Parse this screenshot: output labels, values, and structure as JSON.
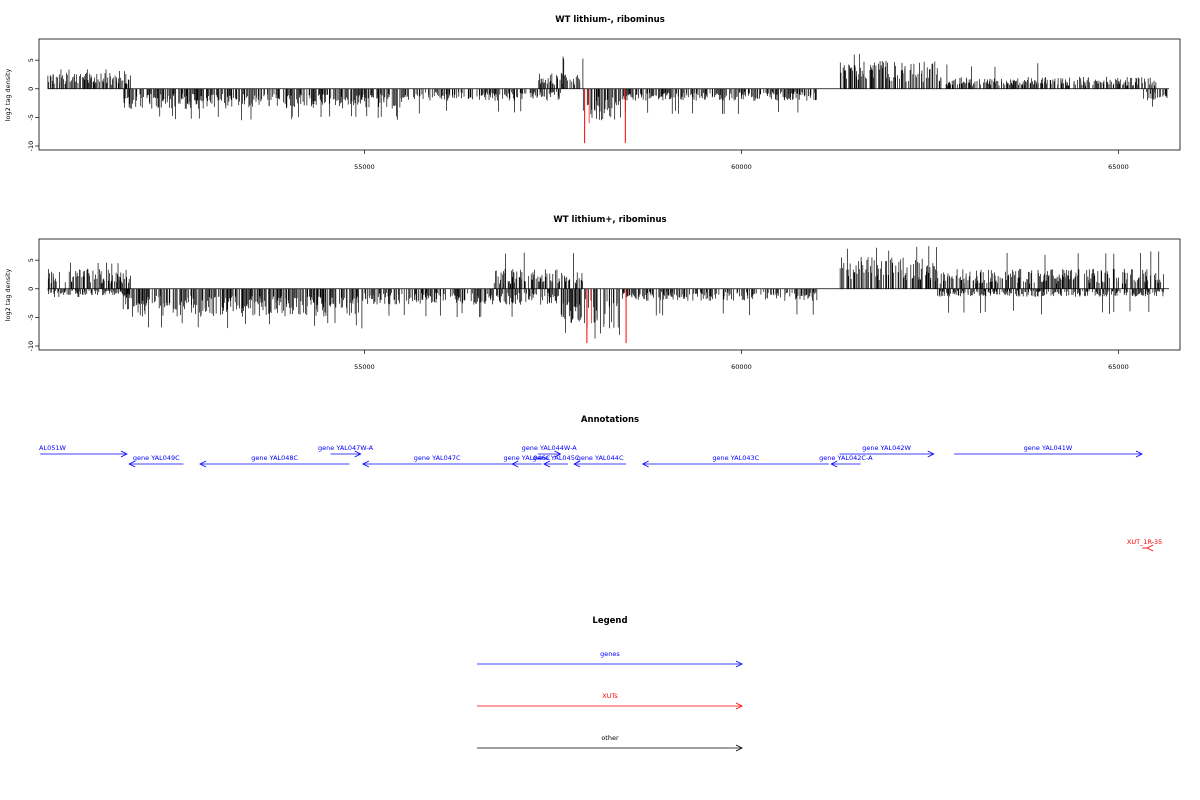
{
  "chart_data": [
    {
      "type": "bar",
      "title": "WT lithium-, ribominus",
      "xlabel": "",
      "ylabel": "log2 tag density",
      "xlim": [
        50700,
        65800
      ],
      "ylim": [
        -10,
        8
      ],
      "x_ticks": [
        55000,
        60000,
        65000
      ],
      "y_ticks": [
        -10,
        -5,
        0,
        5
      ],
      "grid": false,
      "signal_regions": [
        {
          "start": 50800,
          "end": 51900,
          "sign": "+",
          "typical": 2.0,
          "max": 3.6
        },
        {
          "start": 51800,
          "end": 55500,
          "sign": "-",
          "typical": -2.5,
          "max": -5.5
        },
        {
          "start": 55500,
          "end": 57600,
          "sign": "-",
          "typical": -1.5,
          "max": -4.5
        },
        {
          "start": 57300,
          "end": 57900,
          "sign": "+",
          "typical": 2.0,
          "max": 6.2
        },
        {
          "start": 57900,
          "end": 58400,
          "sign": "-",
          "typical": -4.0,
          "max": -7.5
        },
        {
          "start": 58400,
          "end": 61000,
          "sign": "-",
          "typical": -1.5,
          "max": -4.5
        },
        {
          "start": 61300,
          "end": 62600,
          "sign": "+",
          "typical": 3.5,
          "max": 7.0
        },
        {
          "start": 62600,
          "end": 65500,
          "sign": "+",
          "typical": 1.5,
          "max": 4.5
        },
        {
          "start": 65300,
          "end": 65650,
          "sign": "-",
          "typical": -1.5,
          "max": -3.5
        }
      ],
      "highlight": {
        "color": "#ff0000",
        "x": [
          57920,
          58460
        ],
        "value": -9.5
      }
    },
    {
      "type": "bar",
      "title": "WT lithium+, ribominus",
      "xlabel": "",
      "ylabel": "log2 tag density",
      "xlim": [
        50700,
        65800
      ],
      "ylim": [
        -10,
        8
      ],
      "x_ticks": [
        55000,
        60000,
        65000
      ],
      "y_ticks": [
        -10,
        -5,
        0,
        5
      ],
      "grid": false,
      "signal_regions": [
        {
          "start": 50800,
          "end": 51900,
          "sign": "+",
          "typical": 2.5,
          "max": 4.6
        },
        {
          "start": 50800,
          "end": 51900,
          "sign": "-",
          "typical": -0.8,
          "max": -1.5
        },
        {
          "start": 51800,
          "end": 55000,
          "sign": "-",
          "typical": -3.5,
          "max": -7.0
        },
        {
          "start": 55000,
          "end": 57600,
          "sign": "-",
          "typical": -2.0,
          "max": -5.0
        },
        {
          "start": 56700,
          "end": 57900,
          "sign": "+",
          "typical": 2.5,
          "max": 6.5
        },
        {
          "start": 57600,
          "end": 58400,
          "sign": "-",
          "typical": -5.0,
          "max": -9.0
        },
        {
          "start": 58400,
          "end": 61000,
          "sign": "-",
          "typical": -1.5,
          "max": -5.0
        },
        {
          "start": 61300,
          "end": 62600,
          "sign": "+",
          "typical": 4.0,
          "max": 7.8
        },
        {
          "start": 62600,
          "end": 65600,
          "sign": "+",
          "typical": 2.5,
          "max": 6.8
        },
        {
          "start": 62600,
          "end": 65600,
          "sign": "-",
          "typical": -1.0,
          "max": -4.5
        }
      ],
      "highlight": {
        "color": "#ff0000",
        "x": [
          57950,
          58470
        ],
        "value": -9.5
      }
    }
  ],
  "annotations": {
    "title": "Annotations",
    "features": [
      {
        "label": "AL051W",
        "start": 50700,
        "end": 51850,
        "strand": "+",
        "row": 0,
        "color": "#0000ff"
      },
      {
        "label": "gene YAL049C",
        "start": 51880,
        "end": 52600,
        "strand": "-",
        "row": 1,
        "color": "#0000ff"
      },
      {
        "label": "gene YAL048C",
        "start": 52820,
        "end": 54800,
        "strand": "-",
        "row": 1,
        "color": "#0000ff"
      },
      {
        "label": "gene YAL047W-A",
        "start": 54550,
        "end": 54950,
        "strand": "+",
        "row": 0,
        "color": "#0000ff"
      },
      {
        "label": "gene YAL047C",
        "start": 54980,
        "end": 56950,
        "strand": "-",
        "row": 1,
        "color": "#0000ff"
      },
      {
        "label": "gene YAL046C",
        "start": 56960,
        "end": 57350,
        "strand": "-",
        "row": 1,
        "color": "#0000ff"
      },
      {
        "label": "gene YAL044W-A",
        "start": 57300,
        "end": 57600,
        "strand": "+",
        "row": 0,
        "color": "#0000ff"
      },
      {
        "label": "gene YAL045C",
        "start": 57380,
        "end": 57700,
        "strand": "-",
        "row": 1,
        "color": "#0000ff"
      },
      {
        "label": "gene YAL044C",
        "start": 57780,
        "end": 58470,
        "strand": "-",
        "row": 1,
        "color": "#0000ff"
      },
      {
        "label": "gene YAL043C",
        "start": 58690,
        "end": 61160,
        "strand": "-",
        "row": 1,
        "color": "#0000ff"
      },
      {
        "label": "gene YAL042C-A",
        "start": 61190,
        "end": 61580,
        "strand": "-",
        "row": 1,
        "color": "#0000ff"
      },
      {
        "label": "gene YAL042W",
        "start": 61300,
        "end": 62550,
        "strand": "+",
        "row": 0,
        "color": "#0000ff"
      },
      {
        "label": "gene YAL041W",
        "start": 62820,
        "end": 65400,
        "strand": "+",
        "row": 0,
        "color": "#0000ff"
      },
      {
        "label": "XUT_1R-35",
        "start": 65380,
        "end": 65730,
        "strand": "-",
        "row": 2,
        "color": "#ff0000"
      }
    ]
  },
  "legend": {
    "title": "Legend",
    "items": [
      {
        "label": "genes",
        "color": "#0000ff"
      },
      {
        "label": "XUTs",
        "color": "#ff0000"
      },
      {
        "label": "other",
        "color": "#000000"
      }
    ]
  }
}
